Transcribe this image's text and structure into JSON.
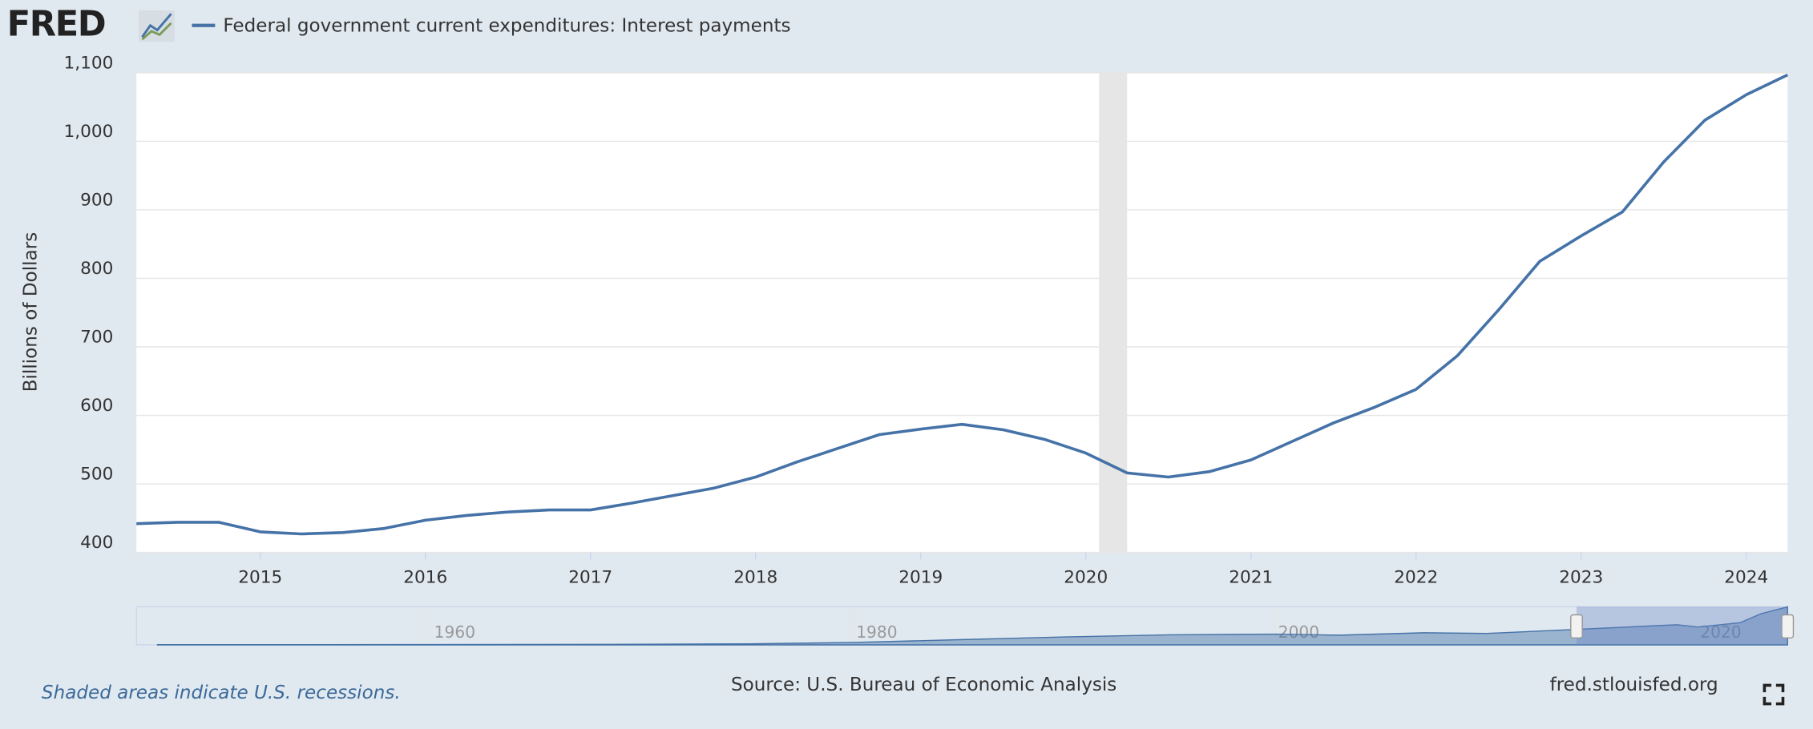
{
  "chart_data": {
    "type": "line",
    "logo": "FRED",
    "y_label": "Billions of Dollars",
    "note": "Shaded areas indicate U.S. recessions.",
    "source": "Source: U.S. Bureau of Economic Analysis",
    "site": "fred.stlouisfed.org",
    "x": [
      2014.25,
      2014.5,
      2014.75,
      2015,
      2015.25,
      2015.5,
      2015.75,
      2016,
      2016.25,
      2016.5,
      2016.75,
      2017,
      2017.25,
      2017.5,
      2017.75,
      2018,
      2018.25,
      2018.5,
      2018.75,
      2019,
      2019.25,
      2019.5,
      2019.75,
      2020,
      2020.25,
      2020.5,
      2020.75,
      2021,
      2021.25,
      2021.5,
      2021.75,
      2022,
      2022.25,
      2022.5,
      2022.75,
      2023,
      2023.25,
      2023.5,
      2023.75,
      2024,
      2024.25
    ],
    "series": [
      {
        "name": "Federal government current expenditures: Interest payments",
        "color": "#4572a7",
        "values": [
          442,
          444,
          444,
          430,
          427,
          429,
          435,
          447,
          454,
          459,
          462,
          462,
          472,
          483,
          494,
          510,
          532,
          552,
          572,
          580,
          587,
          579,
          565,
          545,
          516,
          510,
          518,
          535,
          562,
          589,
          612,
          638,
          687,
          754,
          825,
          862,
          897,
          970,
          1031,
          1068,
          1097
        ]
      }
    ],
    "xlim": [
      2014.25,
      2024.25
    ],
    "xticks": [
      2015,
      2016,
      2017,
      2018,
      2019,
      2020,
      2021,
      2022,
      2023,
      2024
    ],
    "ylim": [
      400,
      1100
    ],
    "yticks": [
      400,
      500,
      600,
      700,
      800,
      900,
      {
        "value": 1000,
        "label": "1,000"
      },
      {
        "value": 1100,
        "label": "1,100"
      }
    ],
    "grid": true,
    "recessions": [
      [
        2020.08,
        2020.25
      ]
    ],
    "navigator": {
      "xlim": [
        1946,
        2024.25
      ],
      "ylim": [
        0,
        1100
      ],
      "xticks": [
        1960,
        1980,
        2000,
        2020
      ],
      "x": [
        1947,
        1960,
        1970,
        1975,
        1980,
        1985,
        1990,
        1995,
        2000,
        2003,
        2007,
        2010,
        2014,
        2019,
        2020,
        2022,
        2023,
        2024.25
      ],
      "values": [
        5,
        9,
        17,
        30,
        70,
        150,
        230,
        290,
        310,
        280,
        350,
        330,
        440,
        580,
        515,
        640,
        900,
        1097
      ]
    }
  }
}
